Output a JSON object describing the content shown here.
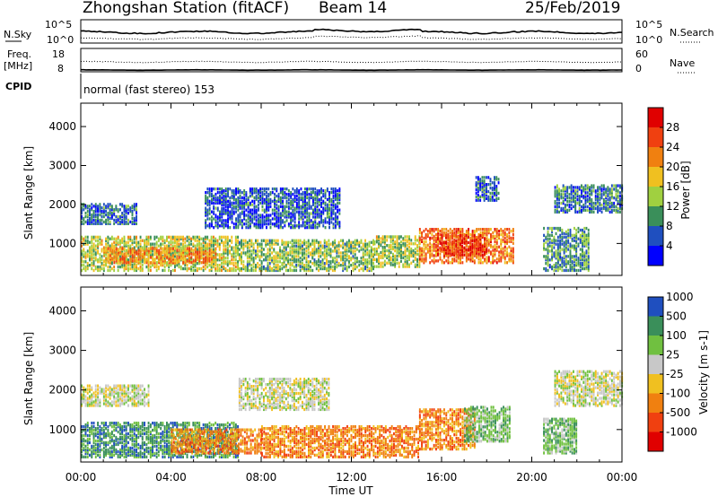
{
  "header": {
    "station": "Zhongshan Station (fitACF)",
    "beam": "Beam 14",
    "date": "25/Feb/2019"
  },
  "strips": {
    "nsky_label": "N.Sky",
    "nsky_top": "10^5",
    "nsky_bottom": "10^0",
    "nsearch_label": "N.Search",
    "freq_label_1": "Freq.",
    "freq_label_2": "[MHz]",
    "freq_top": "18",
    "freq_bottom": "8",
    "nave_label": "Nave",
    "nave_top": "60",
    "nave_bottom": "0",
    "cpid_label": "CPID",
    "cpid_value": "normal (fast stereo) 153"
  },
  "colors": {
    "power": [
      "#0000ff",
      "#1f4fbf",
      "#3a8f5a",
      "#a0d040",
      "#f0c020",
      "#f08010",
      "#f04010",
      "#e00000"
    ],
    "velocity": [
      "#e00000",
      "#f04010",
      "#f08010",
      "#f0c020",
      "#c8c8c8",
      "#70c040",
      "#3a8f5a",
      "#1f4fbf"
    ]
  },
  "chart_data": [
    {
      "type": "heatmap",
      "name": "power",
      "ylabel": "Slant Range [km]",
      "ylim": [
        180,
        4600
      ],
      "yticks": [
        "1000",
        "2000",
        "3000",
        "4000"
      ],
      "colorbar_label": "Power [dB]",
      "colorbar_ticks": [
        "4",
        "8",
        "12",
        "16",
        "20",
        "24",
        "28"
      ],
      "colorbar_range": [
        0,
        32
      ],
      "regions": [
        {
          "t0": 0.0,
          "t1": 7.0,
          "r0": 300,
          "r1": 1200,
          "value": 15
        },
        {
          "t0": 1.0,
          "t1": 6.0,
          "r0": 500,
          "r1": 900,
          "value": 22
        },
        {
          "t0": 7.0,
          "t1": 13.0,
          "r0": 300,
          "r1": 1100,
          "value": 13
        },
        {
          "t0": 13.0,
          "t1": 15.0,
          "r0": 400,
          "r1": 1200,
          "value": 14
        },
        {
          "t0": 15.0,
          "t1": 19.2,
          "r0": 500,
          "r1": 1400,
          "value": 24
        },
        {
          "t0": 15.8,
          "t1": 18.0,
          "r0": 700,
          "r1": 1200,
          "value": 28
        },
        {
          "t0": 0.0,
          "t1": 2.5,
          "r0": 1500,
          "r1": 2000,
          "value": 6
        },
        {
          "t0": 5.5,
          "t1": 11.5,
          "r0": 1400,
          "r1": 2400,
          "value": 5
        },
        {
          "t0": 17.5,
          "t1": 18.5,
          "r0": 2100,
          "r1": 2700,
          "value": 6
        },
        {
          "t0": 21.0,
          "t1": 24.0,
          "r0": 1800,
          "r1": 2500,
          "value": 7
        },
        {
          "t0": 20.5,
          "t1": 22.5,
          "r0": 300,
          "r1": 1400,
          "value": 9
        }
      ]
    },
    {
      "type": "heatmap",
      "name": "velocity",
      "ylabel": "Slant Range [km]",
      "ylim": [
        180,
        4600
      ],
      "yticks": [
        "1000",
        "2000",
        "3000",
        "4000"
      ],
      "xlabel": "Time UT",
      "xlim": [
        0,
        24
      ],
      "xticks": [
        "00:00",
        "04:00",
        "08:00",
        "12:00",
        "16:00",
        "20:00",
        "00:00"
      ],
      "colorbar_label": "Velocity [m s-1]",
      "colorbar_ticks": [
        "-1000",
        "-500",
        "-100",
        "-25",
        "25",
        "100",
        "500",
        "1000"
      ],
      "regions": [
        {
          "t0": 0.0,
          "t1": 7.0,
          "r0": 300,
          "r1": 1200,
          "value": "teal"
        },
        {
          "t0": 4.0,
          "t1": 8.0,
          "r0": 400,
          "r1": 1000,
          "value": "orange"
        },
        {
          "t0": 8.0,
          "t1": 15.0,
          "r0": 300,
          "r1": 1100,
          "value": "orange"
        },
        {
          "t0": 15.0,
          "t1": 17.5,
          "r0": 500,
          "r1": 1500,
          "value": "orange"
        },
        {
          "t0": 17.0,
          "t1": 19.0,
          "r0": 700,
          "r1": 1600,
          "value": "green"
        },
        {
          "t0": 0.0,
          "t1": 3.0,
          "r0": 1600,
          "r1": 2100,
          "value": "grey"
        },
        {
          "t0": 7.0,
          "t1": 11.0,
          "r0": 1500,
          "r1": 2300,
          "value": "grey"
        },
        {
          "t0": 21.0,
          "t1": 24.0,
          "r0": 1600,
          "r1": 2500,
          "value": "grey"
        },
        {
          "t0": 20.5,
          "t1": 22.0,
          "r0": 400,
          "r1": 1300,
          "value": "green"
        }
      ]
    }
  ]
}
